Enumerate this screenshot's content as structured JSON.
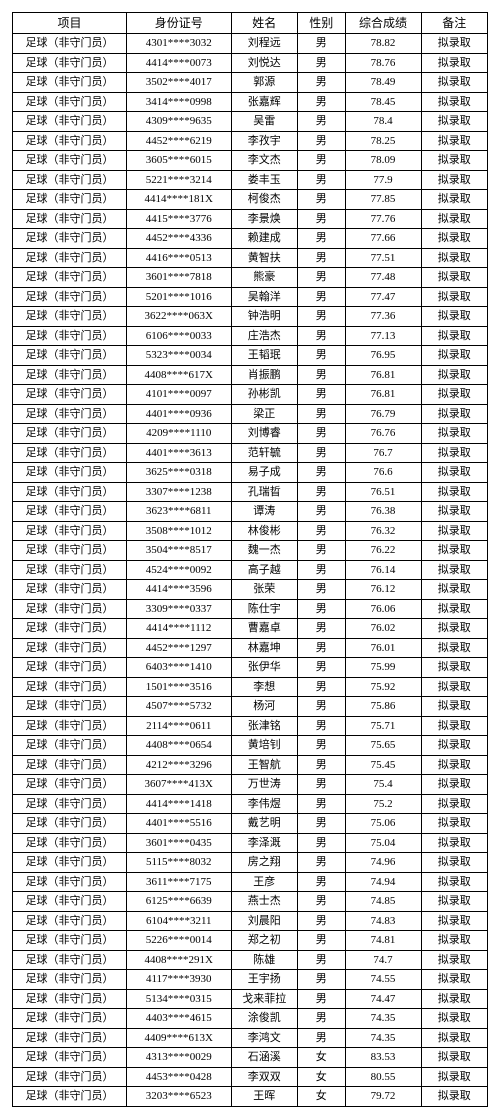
{
  "table": {
    "columns": [
      "项目",
      "身份证号",
      "姓名",
      "性别",
      "综合成绩",
      "备注"
    ],
    "col_widths_pct": [
      24,
      22,
      14,
      10,
      16,
      14
    ],
    "font_family": "SimSun",
    "header_fontsize": 12,
    "cell_fontsize": 11,
    "border_color": "#000000",
    "background_color": "#ffffff",
    "text_color": "#000000",
    "rows": [
      [
        "足球（非守门员）",
        "4301****3032",
        "刘程远",
        "男",
        "78.82",
        "拟录取"
      ],
      [
        "足球（非守门员）",
        "4414****0073",
        "刘悦达",
        "男",
        "78.76",
        "拟录取"
      ],
      [
        "足球（非守门员）",
        "3502****4017",
        "郭源",
        "男",
        "78.49",
        "拟录取"
      ],
      [
        "足球（非守门员）",
        "3414****0998",
        "张嘉辉",
        "男",
        "78.45",
        "拟录取"
      ],
      [
        "足球（非守门员）",
        "4309****9635",
        "吴雷",
        "男",
        "78.4",
        "拟录取"
      ],
      [
        "足球（非守门员）",
        "4452****6219",
        "李孜宇",
        "男",
        "78.25",
        "拟录取"
      ],
      [
        "足球（非守门员）",
        "3605****6015",
        "李文杰",
        "男",
        "78.09",
        "拟录取"
      ],
      [
        "足球（非守门员）",
        "5221****3214",
        "娄丰玉",
        "男",
        "77.9",
        "拟录取"
      ],
      [
        "足球（非守门员）",
        "4414****181X",
        "柯俊杰",
        "男",
        "77.85",
        "拟录取"
      ],
      [
        "足球（非守门员）",
        "4415****3776",
        "李景焕",
        "男",
        "77.76",
        "拟录取"
      ],
      [
        "足球（非守门员）",
        "4452****4336",
        "赖建成",
        "男",
        "77.66",
        "拟录取"
      ],
      [
        "足球（非守门员）",
        "4416****0513",
        "黄智扶",
        "男",
        "77.51",
        "拟录取"
      ],
      [
        "足球（非守门员）",
        "3601****7818",
        "熊豪",
        "男",
        "77.48",
        "拟录取"
      ],
      [
        "足球（非守门员）",
        "5201****1016",
        "吴翰洋",
        "男",
        "77.47",
        "拟录取"
      ],
      [
        "足球（非守门员）",
        "3622****063X",
        "钟浩明",
        "男",
        "77.36",
        "拟录取"
      ],
      [
        "足球（非守门员）",
        "6106****0033",
        "庄浩杰",
        "男",
        "77.13",
        "拟录取"
      ],
      [
        "足球（非守门员）",
        "5323****0034",
        "王韬珉",
        "男",
        "76.95",
        "拟录取"
      ],
      [
        "足球（非守门员）",
        "4408****617X",
        "肖振鹏",
        "男",
        "76.81",
        "拟录取"
      ],
      [
        "足球（非守门员）",
        "4101****0097",
        "孙彬凯",
        "男",
        "76.81",
        "拟录取"
      ],
      [
        "足球（非守门员）",
        "4401****0936",
        "梁正",
        "男",
        "76.79",
        "拟录取"
      ],
      [
        "足球（非守门员）",
        "4209****1110",
        "刘博睿",
        "男",
        "76.76",
        "拟录取"
      ],
      [
        "足球（非守门员）",
        "4401****3613",
        "范轩毓",
        "男",
        "76.7",
        "拟录取"
      ],
      [
        "足球（非守门员）",
        "3625****0318",
        "易子成",
        "男",
        "76.6",
        "拟录取"
      ],
      [
        "足球（非守门员）",
        "3307****1238",
        "孔瑞晢",
        "男",
        "76.51",
        "拟录取"
      ],
      [
        "足球（非守门员）",
        "3623****6811",
        "谭涛",
        "男",
        "76.38",
        "拟录取"
      ],
      [
        "足球（非守门员）",
        "3508****1012",
        "林俊彬",
        "男",
        "76.32",
        "拟录取"
      ],
      [
        "足球（非守门员）",
        "3504****8517",
        "魏一杰",
        "男",
        "76.22",
        "拟录取"
      ],
      [
        "足球（非守门员）",
        "4524****0092",
        "高子越",
        "男",
        "76.14",
        "拟录取"
      ],
      [
        "足球（非守门员）",
        "4414****3596",
        "张荣",
        "男",
        "76.12",
        "拟录取"
      ],
      [
        "足球（非守门员）",
        "3309****0337",
        "陈仕宇",
        "男",
        "76.06",
        "拟录取"
      ],
      [
        "足球（非守门员）",
        "4414****1112",
        "曹嘉卓",
        "男",
        "76.02",
        "拟录取"
      ],
      [
        "足球（非守门员）",
        "4452****1297",
        "林嘉坤",
        "男",
        "76.01",
        "拟录取"
      ],
      [
        "足球（非守门员）",
        "6403****1410",
        "张伊华",
        "男",
        "75.99",
        "拟录取"
      ],
      [
        "足球（非守门员）",
        "1501****3516",
        "李想",
        "男",
        "75.92",
        "拟录取"
      ],
      [
        "足球（非守门员）",
        "4507****5732",
        "杨河",
        "男",
        "75.86",
        "拟录取"
      ],
      [
        "足球（非守门员）",
        "2114****0611",
        "张津铭",
        "男",
        "75.71",
        "拟录取"
      ],
      [
        "足球（非守门员）",
        "4408****0654",
        "黄培钊",
        "男",
        "75.65",
        "拟录取"
      ],
      [
        "足球（非守门员）",
        "4212****3296",
        "王智航",
        "男",
        "75.45",
        "拟录取"
      ],
      [
        "足球（非守门员）",
        "3607****413X",
        "万世涛",
        "男",
        "75.4",
        "拟录取"
      ],
      [
        "足球（非守门员）",
        "4414****1418",
        "李伟煜",
        "男",
        "75.2",
        "拟录取"
      ],
      [
        "足球（非守门员）",
        "4401****5516",
        "戴艺明",
        "男",
        "75.06",
        "拟录取"
      ],
      [
        "足球（非守门员）",
        "3601****0435",
        "李泽溉",
        "男",
        "75.04",
        "拟录取"
      ],
      [
        "足球（非守门员）",
        "5115****8032",
        "房之翔",
        "男",
        "74.96",
        "拟录取"
      ],
      [
        "足球（非守门员）",
        "3611****7175",
        "王彦",
        "男",
        "74.94",
        "拟录取"
      ],
      [
        "足球（非守门员）",
        "6125****6639",
        "燕士杰",
        "男",
        "74.85",
        "拟录取"
      ],
      [
        "足球（非守门员）",
        "6104****3211",
        "刘晨阳",
        "男",
        "74.83",
        "拟录取"
      ],
      [
        "足球（非守门员）",
        "5226****0014",
        "郑之初",
        "男",
        "74.81",
        "拟录取"
      ],
      [
        "足球（非守门员）",
        "4408****291X",
        "陈雄",
        "男",
        "74.7",
        "拟录取"
      ],
      [
        "足球（非守门员）",
        "4117****3930",
        "王宇扬",
        "男",
        "74.55",
        "拟录取"
      ],
      [
        "足球（非守门员）",
        "5134****0315",
        "戈来菲拉",
        "男",
        "74.47",
        "拟录取"
      ],
      [
        "足球（非守门员）",
        "4403****4615",
        "涂俊凯",
        "男",
        "74.35",
        "拟录取"
      ],
      [
        "足球（非守门员）",
        "4409****613X",
        "李鸿文",
        "男",
        "74.35",
        "拟录取"
      ],
      [
        "足球（非守门员）",
        "4313****0029",
        "石涵溪",
        "女",
        "83.53",
        "拟录取"
      ],
      [
        "足球（非守门员）",
        "4453****0428",
        "李双双",
        "女",
        "80.55",
        "拟录取"
      ],
      [
        "足球（非守门员）",
        "3203****6523",
        "王晖",
        "女",
        "79.72",
        "拟录取"
      ]
    ]
  }
}
